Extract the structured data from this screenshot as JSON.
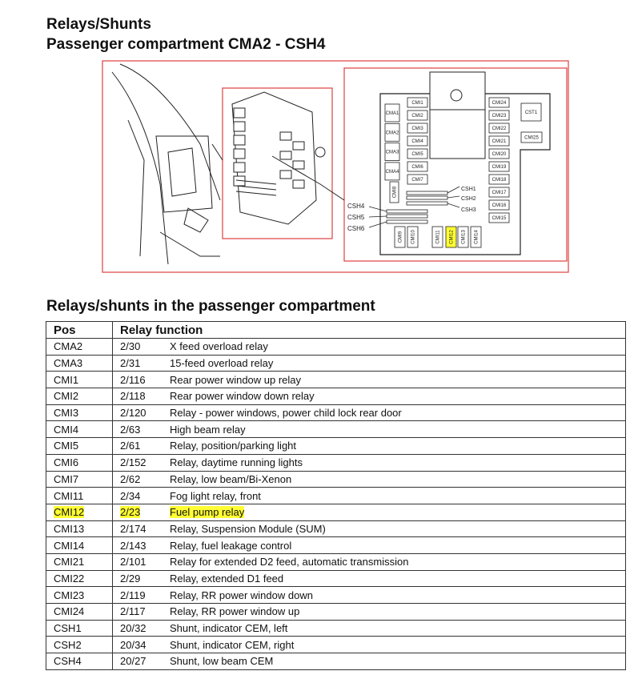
{
  "title": "Relays/Shunts",
  "subtitle": "Passenger compartment CMA2 - CSH4",
  "section_title": "Relays/shunts in the passenger compartment",
  "diagram": {
    "highlight_color": "#ffff33",
    "border_color": "#e04040",
    "cma": [
      "CMA1",
      "CMA2",
      "CMA3",
      "CMA4"
    ],
    "cmi_left": [
      "CMI1",
      "CMI2",
      "CMI3",
      "CMI4",
      "CMI5",
      "CMI6",
      "CMI7"
    ],
    "cmi_right": [
      "CMI24",
      "CMI23",
      "CMI22",
      "CMI21",
      "CMI20",
      "CMI19",
      "CMI18",
      "CMI17",
      "CMI16",
      "CMI15"
    ],
    "cst1": "CST1",
    "cmi25": "CMI25",
    "cmi8": "CMI8",
    "bottom": [
      "CMI9",
      "CMI10",
      "CMI11",
      "CMI12",
      "CMI13",
      "CMI14"
    ],
    "highlighted": "CMI12",
    "csh_right": [
      "CSH1",
      "CSH2",
      "CSH3"
    ],
    "csh_left": [
      "CSH4",
      "CSH5",
      "CSH6"
    ]
  },
  "table": {
    "headers": [
      "Pos",
      "Relay function"
    ],
    "rows": [
      [
        "CMA2",
        "2/30",
        "X feed overload relay"
      ],
      [
        "CMA3",
        "2/31",
        "15-feed overload relay"
      ],
      [
        "CMI1",
        "2/116",
        "Rear power window up relay"
      ],
      [
        "CMI2",
        "2/118",
        "Rear power window down relay"
      ],
      [
        "CMI3",
        "2/120",
        "Relay - power windows, power child lock rear door"
      ],
      [
        "CMI4",
        "2/63",
        "High beam relay"
      ],
      [
        "CMI5",
        "2/61",
        "Relay, position/parking light"
      ],
      [
        "CMI6",
        "2/152",
        "Relay, daytime running lights"
      ],
      [
        "CMI7",
        "2/62",
        "Relay, low beam/Bi-Xenon"
      ],
      [
        "CMI11",
        "2/34",
        "Fog light relay, front"
      ],
      [
        "CMI12",
        "2/23",
        "Fuel pump relay"
      ],
      [
        "CMI13",
        "2/174",
        "Relay, Suspension Module (SUM)"
      ],
      [
        "CMI14",
        "2/143",
        "Relay, fuel leakage control"
      ],
      [
        "CMI21",
        "2/101",
        "Relay for extended D2 feed, automatic transmission"
      ],
      [
        "CMI22",
        "2/29",
        "Relay, extended D1 feed"
      ],
      [
        "CMI23",
        "2/119",
        "Relay, RR power window down"
      ],
      [
        "CMI24",
        "2/117",
        "Relay, RR power window up"
      ],
      [
        "CSH1",
        "20/32",
        "Shunt, indicator CEM, left"
      ],
      [
        "CSH2",
        "20/34",
        "Shunt, indicator CEM, right"
      ],
      [
        "CSH4",
        "20/27",
        "Shunt, low beam CEM"
      ]
    ],
    "highlighted_row": 10
  }
}
